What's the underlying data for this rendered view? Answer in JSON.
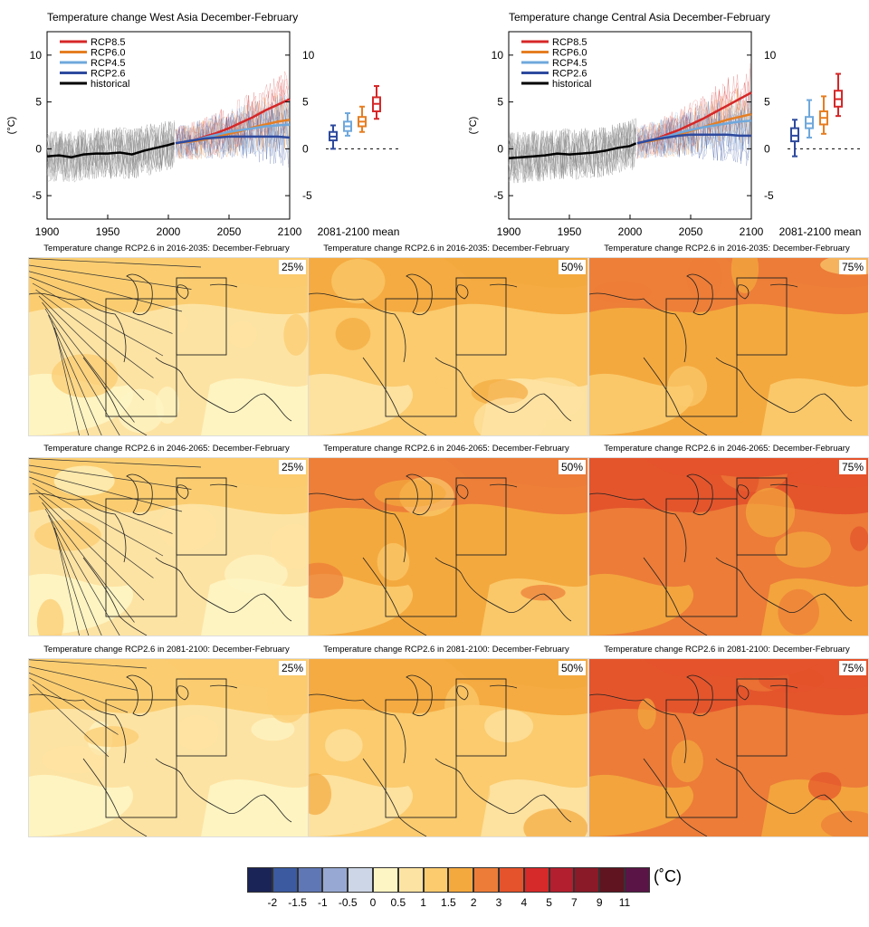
{
  "chart_data": [
    {
      "type": "line",
      "title": "Temperature change West Asia December-February",
      "ylabel": "(°C)",
      "xlim": [
        1900,
        2100
      ],
      "ylim": [
        -7.5,
        12.5
      ],
      "xticks": [
        "1900",
        "1950",
        "2000",
        "2050",
        "2100"
      ],
      "yticks": [
        "10",
        "5",
        "0",
        "-5"
      ],
      "legend_placement": "top-left",
      "boxplot_label": "2081-2100 mean",
      "series": [
        {
          "name": "RCP8.5",
          "color": "#d62728",
          "x": [
            2006,
            2020,
            2030,
            2040,
            2050,
            2060,
            2070,
            2080,
            2090,
            2100
          ],
          "values": [
            0.6,
            0.9,
            1.3,
            1.7,
            2.2,
            2.8,
            3.4,
            4.1,
            4.7,
            5.3
          ]
        },
        {
          "name": "RCP6.0",
          "color": "#e67e22",
          "x": [
            2006,
            2020,
            2030,
            2040,
            2050,
            2060,
            2070,
            2080,
            2090,
            2100
          ],
          "values": [
            0.6,
            0.8,
            1.0,
            1.3,
            1.6,
            1.9,
            2.3,
            2.6,
            2.9,
            3.1
          ]
        },
        {
          "name": "RCP4.5",
          "color": "#6fa8dc",
          "x": [
            2006,
            2020,
            2030,
            2040,
            2050,
            2060,
            2070,
            2080,
            2090,
            2100
          ],
          "values": [
            0.6,
            0.9,
            1.2,
            1.5,
            1.8,
            2.0,
            2.2,
            2.4,
            2.5,
            2.6
          ]
        },
        {
          "name": "RCP2.6",
          "color": "#2e4a9e",
          "x": [
            2006,
            2020,
            2030,
            2040,
            2050,
            2060,
            2070,
            2080,
            2090,
            2100
          ],
          "values": [
            0.6,
            0.9,
            1.1,
            1.2,
            1.3,
            1.3,
            1.3,
            1.3,
            1.3,
            1.2
          ]
        },
        {
          "name": "historical",
          "color": "#000000",
          "x": [
            1900,
            1910,
            1920,
            1930,
            1940,
            1950,
            1960,
            1970,
            1980,
            1990,
            2000,
            2005
          ],
          "values": [
            -0.8,
            -0.7,
            -0.9,
            -0.6,
            -0.5,
            -0.5,
            -0.4,
            -0.6,
            -0.2,
            0.1,
            0.4,
            0.6
          ]
        }
      ],
      "boxes": [
        {
          "name": "RCP2.6",
          "color": "#2e4a9e",
          "min": 0.0,
          "q1": 0.9,
          "median": 1.3,
          "q3": 1.8,
          "max": 2.5
        },
        {
          "name": "RCP4.5",
          "color": "#6fa8dc",
          "min": 1.4,
          "q1": 1.9,
          "median": 2.4,
          "q3": 2.9,
          "max": 3.8
        },
        {
          "name": "RCP6.0",
          "color": "#e67e22",
          "min": 1.8,
          "q1": 2.4,
          "median": 2.9,
          "q3": 3.4,
          "max": 4.5
        },
        {
          "name": "RCP8.5",
          "color": "#d62728",
          "min": 3.2,
          "q1": 4.0,
          "median": 4.8,
          "q3": 5.5,
          "max": 6.7
        }
      ]
    },
    {
      "type": "line",
      "title": "Temperature change Central Asia December-February",
      "ylabel": "(°C)",
      "xlim": [
        1900,
        2100
      ],
      "ylim": [
        -7.5,
        12.5
      ],
      "xticks": [
        "1900",
        "1950",
        "2000",
        "2050",
        "2100"
      ],
      "yticks": [
        "10",
        "5",
        "0",
        "-5"
      ],
      "legend_placement": "top-left",
      "boxplot_label": "2081-2100 mean",
      "series": [
        {
          "name": "RCP8.5",
          "color": "#d62728",
          "x": [
            2006,
            2020,
            2030,
            2040,
            2050,
            2060,
            2070,
            2080,
            2090,
            2100
          ],
          "values": [
            0.6,
            1.0,
            1.5,
            2.0,
            2.6,
            3.2,
            3.9,
            4.6,
            5.3,
            6.0
          ]
        },
        {
          "name": "RCP6.0",
          "color": "#e67e22",
          "x": [
            2006,
            2020,
            2030,
            2040,
            2050,
            2060,
            2070,
            2080,
            2090,
            2100
          ],
          "values": [
            0.6,
            0.9,
            1.2,
            1.5,
            1.9,
            2.3,
            2.7,
            3.1,
            3.4,
            3.7
          ]
        },
        {
          "name": "RCP4.5",
          "color": "#6fa8dc",
          "x": [
            2006,
            2020,
            2030,
            2040,
            2050,
            2060,
            2070,
            2080,
            2090,
            2100
          ],
          "values": [
            0.6,
            1.0,
            1.3,
            1.7,
            2.0,
            2.3,
            2.5,
            2.7,
            2.9,
            3.0
          ]
        },
        {
          "name": "RCP2.6",
          "color": "#2e4a9e",
          "x": [
            2006,
            2020,
            2030,
            2040,
            2050,
            2060,
            2070,
            2080,
            2090,
            2100
          ],
          "values": [
            0.6,
            1.0,
            1.2,
            1.4,
            1.5,
            1.5,
            1.5,
            1.5,
            1.4,
            1.4
          ]
        },
        {
          "name": "historical",
          "color": "#000000",
          "x": [
            1900,
            1910,
            1920,
            1930,
            1940,
            1950,
            1960,
            1970,
            1980,
            1990,
            2000,
            2005
          ],
          "values": [
            -1.0,
            -0.9,
            -0.8,
            -0.7,
            -0.5,
            -0.6,
            -0.5,
            -0.4,
            -0.2,
            0.1,
            0.3,
            0.6
          ]
        }
      ],
      "boxes": [
        {
          "name": "RCP2.6",
          "color": "#2e4a9e",
          "min": -0.8,
          "q1": 0.8,
          "median": 1.4,
          "q3": 2.2,
          "max": 3.1
        },
        {
          "name": "RCP4.5",
          "color": "#6fa8dc",
          "min": 1.2,
          "q1": 2.2,
          "median": 2.7,
          "q3": 3.4,
          "max": 5.2
        },
        {
          "name": "RCP6.0",
          "color": "#e67e22",
          "min": 1.6,
          "q1": 2.6,
          "median": 3.3,
          "q3": 4.0,
          "max": 5.6
        },
        {
          "name": "RCP8.5",
          "color": "#d62728",
          "min": 3.5,
          "q1": 4.5,
          "median": 5.3,
          "q3": 6.2,
          "max": 8.0
        }
      ]
    },
    {
      "type": "heatmap",
      "panels": [
        {
          "title": "Temperature change RCP2.6 in 2016-2035: December-February",
          "percentile": "25%",
          "level": 0,
          "hatched": "strong"
        },
        {
          "title": "Temperature change RCP2.6 in 2016-2035: December-February",
          "percentile": "50%",
          "level": 1,
          "hatched": "none"
        },
        {
          "title": "Temperature change RCP2.6 in 2016-2035: December-February",
          "percentile": "75%",
          "level": 2,
          "hatched": "none"
        },
        {
          "title": "Temperature change RCP2.6 in 2046-2065: December-February",
          "percentile": "25%",
          "level": 0,
          "hatched": "strong"
        },
        {
          "title": "Temperature change RCP2.6 in 2046-2065: December-February",
          "percentile": "50%",
          "level": 2,
          "hatched": "none"
        },
        {
          "title": "Temperature change RCP2.6 in 2046-2065: December-February",
          "percentile": "75%",
          "level": 3,
          "hatched": "none"
        },
        {
          "title": "Temperature change RCP2.6 in 2081-2100: December-February",
          "percentile": "25%",
          "level": 0,
          "hatched": "weak"
        },
        {
          "title": "Temperature change RCP2.6 in 2081-2100: December-February",
          "percentile": "50%",
          "level": 1,
          "hatched": "none"
        },
        {
          "title": "Temperature change RCP2.6 in 2081-2100: December-February",
          "percentile": "75%",
          "level": 3,
          "hatched": "none"
        }
      ],
      "colorbar": {
        "unit": "(˚C)",
        "labels": [
          "-2",
          "-1.5",
          "-1",
          "-0.5",
          "0",
          "0.5",
          "1",
          "1.5",
          "2",
          "3",
          "4",
          "5",
          "7",
          "9",
          "11"
        ],
        "colors": [
          "#1a2456",
          "#3b5aa0",
          "#6077b5",
          "#97a9d2",
          "#cdd6e6",
          "#fdf5c4",
          "#fde3a3",
          "#fbcb6e",
          "#f4a93e",
          "#ec7c38",
          "#e4532b",
          "#d62a2a",
          "#b31f2e",
          "#8a1a28",
          "#5f1420",
          "#5a1546"
        ]
      }
    }
  ]
}
